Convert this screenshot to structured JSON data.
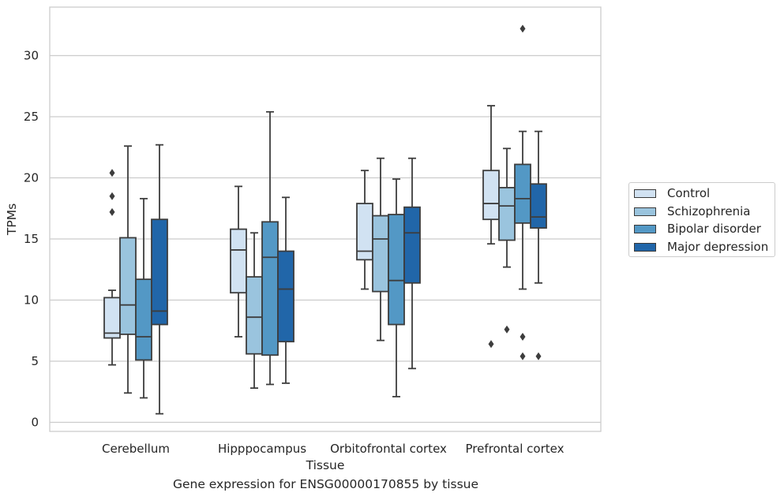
{
  "chart_data": {
    "type": "box",
    "title": "",
    "xlabel": "Tissue",
    "ylabel": "TPMs",
    "caption": "Gene expression for ENSG00000170855 by tissue",
    "ylim": [
      -0.8,
      33.8
    ],
    "yticks": [
      "0",
      "5",
      "10",
      "15",
      "20",
      "25",
      "30"
    ],
    "grid": "horizontal",
    "legend_position": "right",
    "categories": [
      "Cerebellum",
      "Hipppocampus",
      "Orbitofrontal cortex",
      "Prefrontal cortex"
    ],
    "series": [
      {
        "name": "Control",
        "color": "#d1e2f2",
        "boxes": [
          {
            "whislo": 4.7,
            "q1": 6.9,
            "med": 7.3,
            "q3": 10.2,
            "whishi": 10.8,
            "fliers": [
              17.2,
              18.5,
              20.4
            ]
          },
          {
            "whislo": 7.0,
            "q1": 10.6,
            "med": 14.1,
            "q3": 15.8,
            "whishi": 19.3,
            "fliers": []
          },
          {
            "whislo": 10.9,
            "q1": 13.3,
            "med": 14.0,
            "q3": 17.9,
            "whishi": 20.6,
            "fliers": []
          },
          {
            "whislo": 14.6,
            "q1": 16.6,
            "med": 17.9,
            "q3": 20.6,
            "whishi": 25.9,
            "fliers": [
              6.4
            ]
          }
        ]
      },
      {
        "name": "Schizophrenia",
        "color": "#9ac4de",
        "boxes": [
          {
            "whislo": 2.4,
            "q1": 7.2,
            "med": 9.6,
            "q3": 15.1,
            "whishi": 22.6,
            "fliers": []
          },
          {
            "whislo": 2.8,
            "q1": 5.6,
            "med": 8.6,
            "q3": 11.9,
            "whishi": 15.5,
            "fliers": []
          },
          {
            "whislo": 6.7,
            "q1": 10.7,
            "med": 15.0,
            "q3": 16.9,
            "whishi": 21.6,
            "fliers": []
          },
          {
            "whislo": 12.7,
            "q1": 14.9,
            "med": 17.7,
            "q3": 19.2,
            "whishi": 22.4,
            "fliers": [
              7.6
            ]
          }
        ]
      },
      {
        "name": "Bipolar disorder",
        "color": "#5398c5",
        "boxes": [
          {
            "whislo": 2.0,
            "q1": 5.1,
            "med": 7.0,
            "q3": 11.7,
            "whishi": 18.3,
            "fliers": []
          },
          {
            "whislo": 3.1,
            "q1": 5.5,
            "med": 13.5,
            "q3": 16.4,
            "whishi": 25.4,
            "fliers": []
          },
          {
            "whislo": 2.1,
            "q1": 8.0,
            "med": 11.6,
            "q3": 17.0,
            "whishi": 19.9,
            "fliers": []
          },
          {
            "whislo": 10.9,
            "q1": 16.3,
            "med": 18.3,
            "q3": 21.1,
            "whishi": 23.8,
            "fliers": [
              5.4,
              7.0,
              32.2
            ]
          }
        ]
      },
      {
        "name": "Major depression",
        "color": "#2166a9",
        "boxes": [
          {
            "whislo": 0.7,
            "q1": 8.0,
            "med": 9.1,
            "q3": 16.6,
            "whishi": 22.7,
            "fliers": []
          },
          {
            "whislo": 3.2,
            "q1": 6.6,
            "med": 10.9,
            "q3": 14.0,
            "whishi": 18.4,
            "fliers": []
          },
          {
            "whislo": 4.4,
            "q1": 11.4,
            "med": 15.5,
            "q3": 17.6,
            "whishi": 21.6,
            "fliers": []
          },
          {
            "whislo": 11.4,
            "q1": 15.9,
            "med": 16.8,
            "q3": 19.5,
            "whishi": 23.8,
            "fliers": [
              5.4
            ]
          }
        ]
      }
    ]
  }
}
